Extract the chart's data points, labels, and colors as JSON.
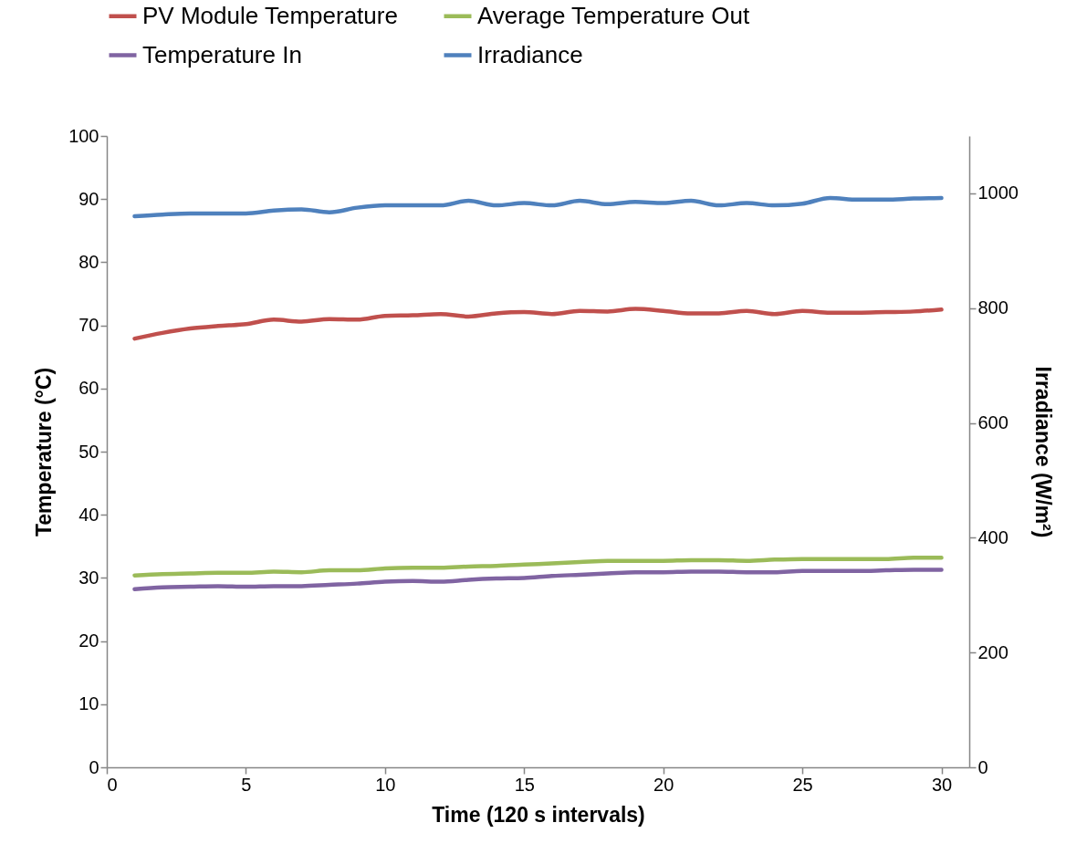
{
  "chart_data": {
    "type": "line",
    "xlabel": "Time (120 s intervals)",
    "ylabel": "Temperature (°C)",
    "y2label": "Irradiance (W/m²)",
    "x": [
      1,
      2,
      3,
      4,
      5,
      6,
      7,
      8,
      9,
      10,
      11,
      12,
      13,
      14,
      15,
      16,
      17,
      18,
      19,
      20,
      21,
      22,
      23,
      24,
      25,
      26,
      27,
      28,
      29,
      30
    ],
    "xlim": [
      0,
      31
    ],
    "xticks": [
      0,
      5,
      10,
      15,
      20,
      25,
      30
    ],
    "ylim": [
      0,
      100
    ],
    "yticks": [
      0,
      10,
      20,
      30,
      40,
      50,
      60,
      70,
      80,
      90,
      100
    ],
    "y2lim": [
      0,
      1100
    ],
    "y2ticks": [
      0,
      200,
      400,
      600,
      800,
      1000
    ],
    "legend": "top",
    "series": [
      {
        "name": "PV Module Temperature",
        "color": "#c0504d",
        "values": [
          67.9,
          68.8,
          69.5,
          69.9,
          70.2,
          70.9,
          70.6,
          71.0,
          70.9,
          71.5,
          71.6,
          71.8,
          71.4,
          71.9,
          72.1,
          71.8,
          72.3,
          72.2,
          72.6,
          72.3,
          71.9,
          71.9,
          72.3,
          71.8,
          72.3,
          72.0,
          72.0,
          72.1,
          72.2,
          72.5
        ]
      },
      {
        "name": "Average Temperature Out",
        "color": "#9bbb59",
        "values": [
          30.4,
          30.6,
          30.7,
          30.8,
          30.8,
          31.0,
          30.9,
          31.2,
          31.2,
          31.5,
          31.6,
          31.6,
          31.8,
          31.9,
          32.1,
          32.3,
          32.5,
          32.7,
          32.7,
          32.7,
          32.8,
          32.8,
          32.7,
          32.9,
          33.0,
          33.0,
          33.0,
          33.0,
          33.2,
          33.2
        ]
      },
      {
        "name": "Temperature In",
        "color": "#8064a2",
        "values": [
          28.2,
          28.5,
          28.6,
          28.7,
          28.6,
          28.7,
          28.7,
          28.9,
          29.1,
          29.4,
          29.5,
          29.4,
          29.7,
          29.9,
          30.0,
          30.3,
          30.5,
          30.7,
          30.9,
          30.9,
          31.0,
          31.0,
          30.9,
          30.9,
          31.1,
          31.1,
          31.1,
          31.2,
          31.3,
          31.3
        ]
      },
      {
        "name": "Irradiance",
        "color": "#4f81bd",
        "axis": "y2",
        "values": [
          960,
          963,
          965,
          965,
          965,
          970,
          972,
          967,
          975,
          979,
          979,
          979,
          987,
          979,
          983,
          979,
          987,
          981,
          985,
          983,
          987,
          979,
          983,
          979,
          982,
          992,
          989,
          989,
          991,
          992
        ]
      }
    ]
  }
}
